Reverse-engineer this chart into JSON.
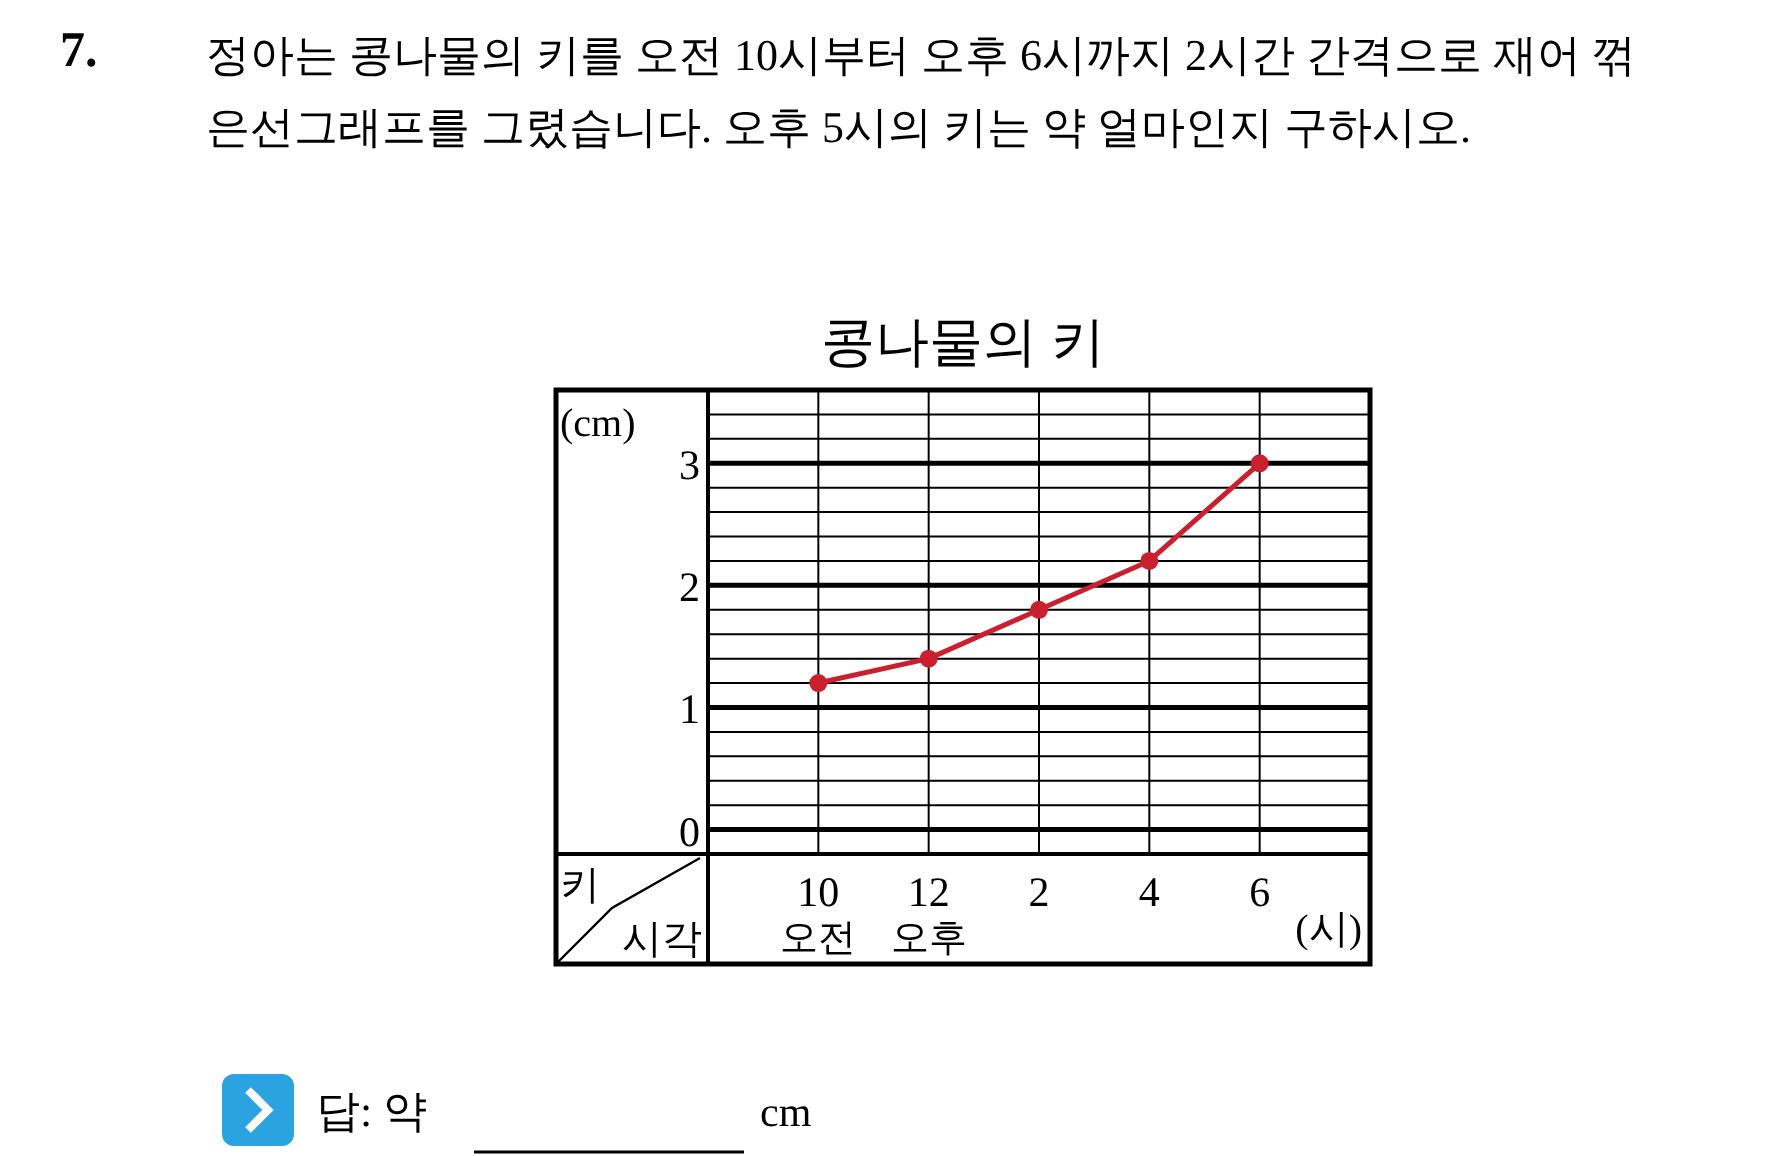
{
  "chart_data": {
    "type": "line",
    "title": "콩나물의 키",
    "categories": [
      "10\n오전",
      "12\n오후",
      "2",
      "4",
      "6"
    ],
    "series": [
      {
        "color": "#c8202f",
        "values": [
          1.2,
          1.4,
          1.8,
          2.2,
          3.0
        ]
      }
    ],
    "ylabel": "(cm)",
    "xlabel": "(시)",
    "ylim": [
      -0.2,
      3.6
    ],
    "yticks": [
      0,
      {
        "value": 0.2,
        "label": null
      },
      {
        "value": 0.4,
        "label": null
      },
      {
        "value": 0.6,
        "label": null
      },
      {
        "value": 0.8,
        "label": null
      },
      1,
      {
        "value": 1.2,
        "label": null
      },
      {
        "value": 1.4,
        "label": null
      },
      {
        "value": 1.6,
        "label": null
      },
      {
        "value": 1.8,
        "label": null
      },
      2,
      {
        "value": 2.2,
        "label": null
      },
      {
        "value": 2.4,
        "label": null
      },
      {
        "value": 2.6,
        "label": null
      },
      {
        "value": 2.8,
        "label": null
      },
      3,
      {
        "value": 3.2,
        "label": null
      },
      {
        "value": 3.4,
        "label": null
      }
    ],
    "grid": true,
    "marker": "circle",
    "line_style": "solid",
    "annotations": [
      "7.",
      "정아는 콩나물의 키를 오전 10시부터 오후 6시까지 2시간 간격으로 재어 꺾은선그래프를 그렸습니다. 오후 5시의 키는 약 얼마인지 구하시오.",
      "키",
      "시각",
      "답: 약",
      "cm"
    ]
  }
}
